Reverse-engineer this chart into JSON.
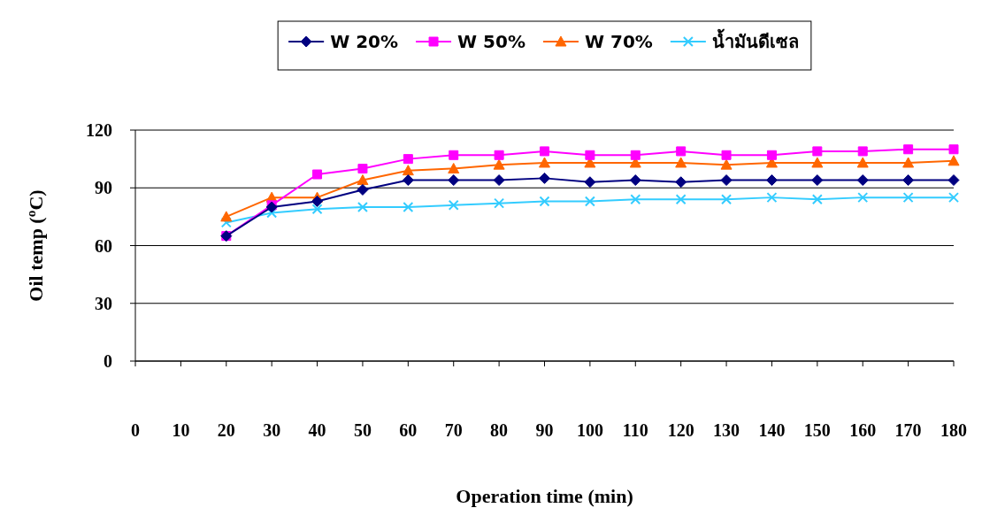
{
  "chart_data": {
    "type": "line",
    "xlabel": "Operation time (min)",
    "ylabel": "Oil temp ($^{o}$C)",
    "x": [
      20,
      30,
      40,
      50,
      60,
      70,
      80,
      90,
      100,
      110,
      120,
      130,
      140,
      150,
      160,
      170,
      180
    ],
    "xlim": [
      0,
      180
    ],
    "xticks": [
      0,
      10,
      20,
      30,
      40,
      50,
      60,
      70,
      80,
      90,
      100,
      110,
      120,
      130,
      140,
      150,
      160,
      170,
      180
    ],
    "ylim": [
      0,
      120
    ],
    "yticks": [
      0,
      30,
      60,
      90,
      120
    ],
    "grid": "y",
    "legend": "top",
    "series": [
      {
        "name": "W 20%",
        "color": "#000080",
        "marker": "diamond",
        "values": [
          65,
          80,
          83,
          89,
          94,
          94,
          94,
          95,
          93,
          94,
          93,
          94,
          94,
          94,
          94,
          94,
          94
        ]
      },
      {
        "name": "W 50%",
        "color": "#ff00ff",
        "marker": "square",
        "values": [
          65,
          81,
          97,
          100,
          105,
          107,
          107,
          109,
          107,
          107,
          109,
          107,
          107,
          109,
          109,
          110,
          110
        ]
      },
      {
        "name": "W 70%",
        "color": "#ff6600",
        "marker": "triangle",
        "values": [
          75,
          85,
          85,
          94,
          99,
          100,
          102,
          103,
          103,
          103,
          103,
          102,
          103,
          103,
          103,
          103,
          104
        ]
      },
      {
        "name": "น้ำมันดีเซล",
        "color": "#33ccff",
        "marker": "cross",
        "values": [
          72,
          77,
          79,
          80,
          80,
          81,
          82,
          83,
          83,
          84,
          84,
          84,
          85,
          84,
          85,
          85,
          85
        ]
      }
    ]
  }
}
